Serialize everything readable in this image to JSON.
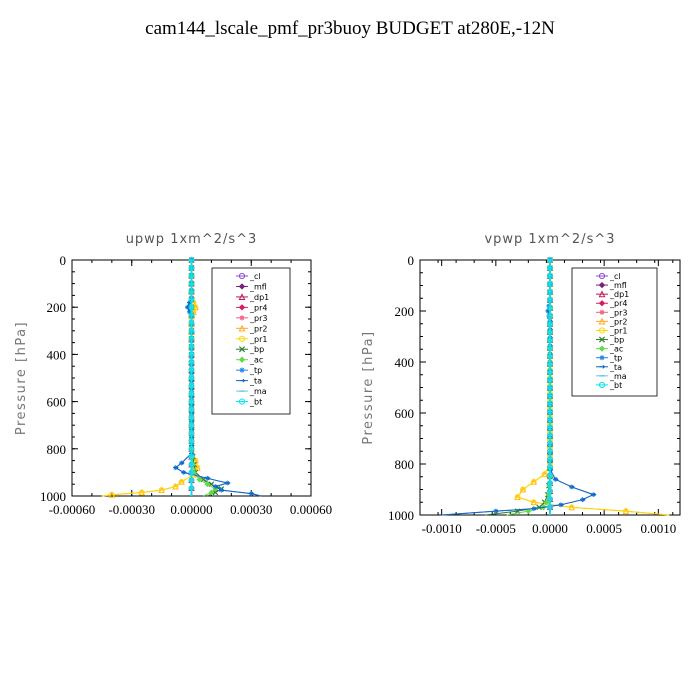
{
  "figure": {
    "title": "cam144_lscale_pmf_pr3buoy  BUDGET at280E,-12N"
  },
  "legend_entries": [
    {
      "name": "_cl",
      "color": "#8c4fd6",
      "marker": "circle"
    },
    {
      "name": "_mfl",
      "color": "#7a1f7a",
      "marker": "diamond"
    },
    {
      "name": "_dp1",
      "color": "#c2185b",
      "marker": "triangle"
    },
    {
      "name": "_pr4",
      "color": "#d81b60",
      "marker": "diamond"
    },
    {
      "name": "_pr3",
      "color": "#f06080",
      "marker": "star"
    },
    {
      "name": "_pr2",
      "color": "#ffa726",
      "marker": "triangle"
    },
    {
      "name": "_pr1",
      "color": "#ffd600",
      "marker": "circle"
    },
    {
      "name": "_bp",
      "color": "#2e7d32",
      "marker": "x"
    },
    {
      "name": "_ac",
      "color": "#66d94a",
      "marker": "diamond"
    },
    {
      "name": "_tp",
      "color": "#1e88e5",
      "marker": "star"
    },
    {
      "name": "_ta",
      "color": "#1565c0",
      "marker": "arrow"
    },
    {
      "name": "_ma",
      "color": "#5ec8e8",
      "marker": "dash"
    },
    {
      "name": "_bt",
      "color": "#00e5ee",
      "marker": "circle"
    }
  ],
  "chart_data": [
    {
      "type": "line",
      "title": "upwp   1xm^2/s^3",
      "xlabel": "",
      "ylabel": "Pressure [hPa]",
      "xlim": [
        -0.0006,
        0.0006
      ],
      "ylim": [
        1000,
        0
      ],
      "xticks": [
        "-0.00060",
        "-0.00030",
        "0.00000",
        "0.00030",
        "0.00060"
      ],
      "xtick_values": [
        -0.0006,
        -0.0003,
        0,
        0.0003,
        0.0006
      ],
      "yticks": [
        "0",
        "200",
        "400",
        "600",
        "800",
        "1000"
      ],
      "ytick_values": [
        0,
        200,
        400,
        600,
        800,
        1000
      ],
      "grid": false,
      "legend_position": "top-right",
      "series": [
        {
          "name": "_cl",
          "p": [
            0,
            500,
            1000
          ],
          "x": [
            0,
            0,
            0
          ]
        },
        {
          "name": "_mfl",
          "p": [
            0,
            500,
            1000
          ],
          "x": [
            0,
            0,
            0
          ]
        },
        {
          "name": "_dp1",
          "p": [
            0,
            500,
            1000
          ],
          "x": [
            0,
            0,
            0
          ]
        },
        {
          "name": "_pr4",
          "p": [
            0,
            500,
            1000
          ],
          "x": [
            0,
            0,
            0
          ]
        },
        {
          "name": "_pr3",
          "p": [
            0,
            500,
            1000
          ],
          "x": [
            0,
            0,
            0
          ]
        },
        {
          "name": "_pr2",
          "p": [
            0,
            160,
            180,
            200,
            220,
            240,
            800,
            850,
            880,
            910,
            940,
            960,
            975,
            985,
            995,
            1000
          ],
          "x": [
            0,
            0,
            1e-05,
            2e-05,
            1e-05,
            0,
            0,
            2e-05,
            3e-05,
            1e-05,
            -5e-05,
            -8e-05,
            -0.00015,
            -0.00025,
            -0.0004,
            -0.00045
          ]
        },
        {
          "name": "_pr1",
          "p": [
            0,
            160,
            180,
            200,
            220,
            240,
            800,
            850,
            880,
            910,
            940,
            960,
            975,
            985,
            995,
            1000
          ],
          "x": [
            0,
            0,
            1e-05,
            2e-05,
            1e-05,
            0,
            0,
            2e-05,
            3e-05,
            1e-05,
            -5e-05,
            -8e-05,
            -0.00015,
            -0.00025,
            -0.0004,
            -0.00045
          ]
        },
        {
          "name": "_bp",
          "p": [
            0,
            800,
            900,
            930,
            950,
            970,
            985,
            1000
          ],
          "x": [
            0,
            0,
            2e-05,
            6e-05,
            0.0001,
            0.00015,
            0.00012,
            8e-05
          ]
        },
        {
          "name": "_ac",
          "p": [
            0,
            800,
            900,
            930,
            950,
            970,
            985,
            1000
          ],
          "x": [
            0,
            0,
            1e-05,
            4e-05,
            8e-05,
            0.00012,
            0.0001,
            6e-05
          ]
        },
        {
          "name": "_tp",
          "p": [
            0,
            160,
            180,
            200,
            220,
            240,
            820,
            860,
            880,
            900,
            925,
            945,
            960,
            975,
            990,
            1000
          ],
          "x": [
            0,
            0,
            -1e-05,
            -2e-05,
            -1e-05,
            0,
            0,
            -5e-05,
            -8e-05,
            -4e-05,
            8e-05,
            0.00018,
            0.00012,
            0.00015,
            0.0003,
            0.00035
          ]
        },
        {
          "name": "_ta",
          "p": [
            0,
            160,
            180,
            200,
            220,
            240,
            820,
            860,
            880,
            900,
            925,
            945,
            960,
            975,
            990,
            1000
          ],
          "x": [
            0,
            0,
            -1e-05,
            -2e-05,
            -1e-05,
            0,
            0,
            -5e-05,
            -8e-05,
            -4e-05,
            8e-05,
            0.00018,
            0.00012,
            0.00015,
            0.0003,
            0.00035
          ]
        },
        {
          "name": "_ma",
          "p": [
            0,
            500,
            1000
          ],
          "x": [
            0,
            0,
            0
          ]
        },
        {
          "name": "_bt",
          "p": [
            0,
            500,
            1000
          ],
          "x": [
            0,
            0,
            0
          ]
        }
      ]
    },
    {
      "type": "line",
      "title": "vpwp   1xm^2/s^3",
      "xlabel": "",
      "ylabel": "Pressure [hPa]",
      "xlim": [
        -0.0012,
        0.0012
      ],
      "ylim": [
        1000,
        0
      ],
      "xticks": [
        "-0.0010",
        "-0.0005",
        "0.0000",
        "0.0005",
        "0.0010"
      ],
      "xtick_values": [
        -0.001,
        -0.0005,
        0,
        0.0005,
        0.001
      ],
      "yticks": [
        "0",
        "200",
        "400",
        "600",
        "800",
        "1000"
      ],
      "ytick_values": [
        0,
        200,
        400,
        600,
        800,
        1000
      ],
      "grid": false,
      "legend_position": "top-right",
      "series": [
        {
          "name": "_cl",
          "p": [
            0,
            500,
            1000
          ],
          "x": [
            0,
            0,
            0
          ]
        },
        {
          "name": "_mfl",
          "p": [
            0,
            500,
            1000
          ],
          "x": [
            0,
            0,
            0
          ]
        },
        {
          "name": "_dp1",
          "p": [
            0,
            500,
            1000
          ],
          "x": [
            0,
            0,
            0
          ]
        },
        {
          "name": "_pr4",
          "p": [
            0,
            500,
            1000
          ],
          "x": [
            0,
            0,
            0
          ]
        },
        {
          "name": "_pr3",
          "p": [
            0,
            500,
            1000
          ],
          "x": [
            0,
            0,
            0
          ]
        },
        {
          "name": "_pr2",
          "p": [
            0,
            800,
            840,
            870,
            900,
            930,
            950,
            970,
            985,
            1000
          ],
          "x": [
            0,
            0,
            -5e-05,
            -0.00015,
            -0.00025,
            -0.0003,
            -0.00015,
            0.0002,
            0.0007,
            0.0011
          ]
        },
        {
          "name": "_pr1",
          "p": [
            0,
            800,
            840,
            870,
            900,
            930,
            950,
            970,
            985,
            1000
          ],
          "x": [
            0,
            0,
            -5e-05,
            -0.00015,
            -0.00025,
            -0.0003,
            -0.00015,
            0.0002,
            0.0007,
            0.0011
          ]
        },
        {
          "name": "_bp",
          "p": [
            0,
            850,
            920,
            950,
            970,
            985,
            1000
          ],
          "x": [
            0,
            0,
            -2e-05,
            -5e-05,
            -0.0001,
            -0.0003,
            -0.0006
          ]
        },
        {
          "name": "_ac",
          "p": [
            0,
            850,
            920,
            950,
            970,
            985,
            1000
          ],
          "x": [
            0,
            0,
            -1e-05,
            -3e-05,
            -6e-05,
            -0.0002,
            -0.0004
          ]
        },
        {
          "name": "_tp",
          "p": [
            0,
            160,
            180,
            200,
            220,
            240,
            820,
            860,
            890,
            920,
            940,
            960,
            975,
            985,
            1000
          ],
          "x": [
            0,
            0,
            -1e-05,
            -2e-05,
            -1e-05,
            0,
            0,
            5e-05,
            0.0002,
            0.0004,
            0.0003,
            0.0001,
            -0.00015,
            -0.0005,
            -0.001
          ]
        },
        {
          "name": "_ta",
          "p": [
            0,
            160,
            180,
            200,
            220,
            240,
            820,
            860,
            890,
            920,
            940,
            960,
            975,
            985,
            1000
          ],
          "x": [
            0,
            0,
            -1e-05,
            -2e-05,
            -1e-05,
            0,
            0,
            5e-05,
            0.0002,
            0.0004,
            0.0003,
            0.0001,
            -0.00015,
            -0.0005,
            -0.001
          ]
        },
        {
          "name": "_ma",
          "p": [
            0,
            500,
            1000
          ],
          "x": [
            0,
            0,
            0
          ]
        },
        {
          "name": "_bt",
          "p": [
            0,
            500,
            1000
          ],
          "x": [
            0,
            0,
            0
          ]
        }
      ]
    }
  ]
}
